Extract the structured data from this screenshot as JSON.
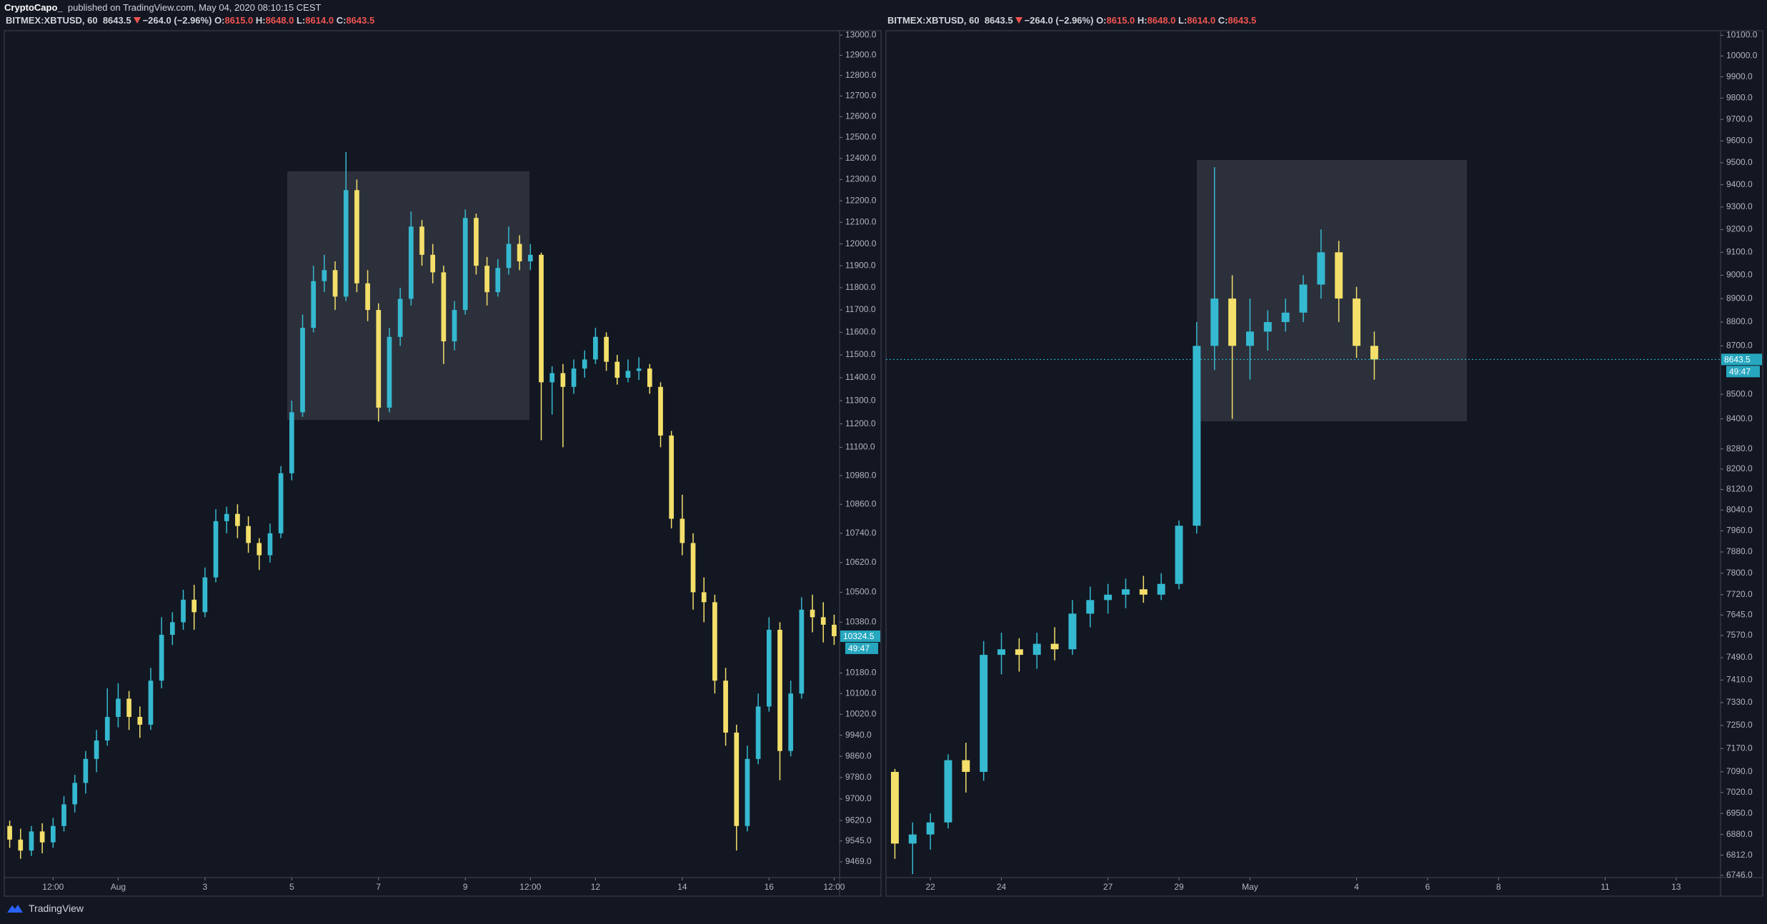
{
  "header": {
    "author": "CryptoCapo_",
    "published": "published on TradingView.com, May 04, 2020 08:10:15 CEST"
  },
  "footer": {
    "brand": "TradingView"
  },
  "chart_data": [
    {
      "type": "candlestick",
      "log_scale": true,
      "up_color": "#35b9d0",
      "down_color": "#f3df6a",
      "price_line": false,
      "legend": {
        "symbol": "BITMEX:XBTUSD, 60",
        "last": "8643.5",
        "change": "−264.0 (−2.96%)",
        "o_label": "O:",
        "o": "8615.0",
        "h_label": "H:",
        "h": "8648.0",
        "l_label": "L:",
        "l": "8614.0",
        "c_label": "C:",
        "c": "8643.5"
      },
      "countdown": "49:47",
      "ylim": [
        9412,
        13022
      ],
      "yticks": [
        {
          "value": 13000,
          "label": "13000.0"
        },
        {
          "value": 12900,
          "label": "12900.0"
        },
        {
          "value": 12800,
          "label": "12800.0"
        },
        {
          "value": 12700,
          "label": "12700.0"
        },
        {
          "value": 12600,
          "label": "12600.0"
        },
        {
          "value": 12500,
          "label": "12500.0"
        },
        {
          "value": 12400,
          "label": "12400.0"
        },
        {
          "value": 12300,
          "label": "12300.0"
        },
        {
          "value": 12200,
          "label": "12200.0"
        },
        {
          "value": 12100,
          "label": "12100.0"
        },
        {
          "value": 12000,
          "label": "12000.0"
        },
        {
          "value": 11900,
          "label": "11900.0"
        },
        {
          "value": 11800,
          "label": "11800.0"
        },
        {
          "value": 11700,
          "label": "11700.0"
        },
        {
          "value": 11600,
          "label": "11600.0"
        },
        {
          "value": 11500,
          "label": "11500.0"
        },
        {
          "value": 11400,
          "label": "11400.0"
        },
        {
          "value": 11300,
          "label": "11300.0"
        },
        {
          "value": 11200,
          "label": "11200.0"
        },
        {
          "value": 11100,
          "label": "11100.0"
        },
        {
          "value": 10980,
          "label": "10980.0"
        },
        {
          "value": 10860,
          "label": "10860.0"
        },
        {
          "value": 10740,
          "label": "10740.0"
        },
        {
          "value": 10620,
          "label": "10620.0"
        },
        {
          "value": 10500,
          "label": "10500.0"
        },
        {
          "value": 10380,
          "label": "10380.0"
        },
        {
          "value": 10180,
          "label": "10180.0"
        },
        {
          "value": 10100,
          "label": "10100.0"
        },
        {
          "value": 10020,
          "label": "10020.0"
        },
        {
          "value": 9940,
          "label": "9940.0"
        },
        {
          "value": 9860,
          "label": "9860.0"
        },
        {
          "value": 9780,
          "label": "9780.0"
        },
        {
          "value": 9700,
          "label": "9700.0"
        },
        {
          "value": 9620,
          "label": "9620.0"
        },
        {
          "value": 9545,
          "label": "9545.0"
        },
        {
          "value": 9469,
          "label": "9469.0"
        }
      ],
      "categories": [
        null,
        null,
        null,
        null,
        "12:00",
        null,
        null,
        null,
        null,
        null,
        "Aug",
        null,
        null,
        null,
        null,
        null,
        null,
        null,
        "3",
        null,
        null,
        null,
        null,
        null,
        null,
        null,
        "5",
        null,
        null,
        null,
        null,
        null,
        null,
        null,
        "7",
        null,
        null,
        null,
        null,
        null,
        null,
        null,
        "9",
        null,
        null,
        null,
        null,
        null,
        "12:00",
        null,
        null,
        null,
        null,
        null,
        "12",
        null,
        null,
        null,
        null,
        null,
        null,
        null,
        "14",
        null,
        null,
        null,
        null,
        null,
        null,
        null,
        "16",
        null,
        null,
        null,
        null,
        null,
        "12:00"
      ],
      "ohlc": [
        [
          9600,
          9620,
          9520,
          9550
        ],
        [
          9550,
          9590,
          9480,
          9510
        ],
        [
          9510,
          9600,
          9490,
          9580
        ],
        [
          9580,
          9610,
          9500,
          9540
        ],
        [
          9540,
          9630,
          9520,
          9600
        ],
        [
          9600,
          9710,
          9580,
          9680
        ],
        [
          9680,
          9790,
          9650,
          9760
        ],
        [
          9760,
          9880,
          9720,
          9850
        ],
        [
          9850,
          9960,
          9800,
          9920
        ],
        [
          9920,
          10120,
          9900,
          10010
        ],
        [
          10010,
          10140,
          9970,
          10080
        ],
        [
          10080,
          10110,
          9960,
          10010
        ],
        [
          10010,
          10050,
          9930,
          9980
        ],
        [
          9980,
          10200,
          9960,
          10150
        ],
        [
          10150,
          10400,
          10120,
          10330
        ],
        [
          10330,
          10420,
          10290,
          10380
        ],
        [
          10380,
          10510,
          10350,
          10470
        ],
        [
          10470,
          10530,
          10350,
          10420
        ],
        [
          10420,
          10600,
          10400,
          10560
        ],
        [
          10560,
          10840,
          10540,
          10790
        ],
        [
          10790,
          10850,
          10740,
          10820
        ],
        [
          10820,
          10860,
          10720,
          10770
        ],
        [
          10770,
          10810,
          10660,
          10700
        ],
        [
          10700,
          10720,
          10590,
          10650
        ],
        [
          10650,
          10780,
          10620,
          10740
        ],
        [
          10740,
          11020,
          10720,
          10990
        ],
        [
          10990,
          11300,
          10960,
          11250
        ],
        [
          11250,
          11680,
          11230,
          11620
        ],
        [
          11620,
          11900,
          11600,
          11830
        ],
        [
          11830,
          11950,
          11780,
          11880
        ],
        [
          11880,
          11920,
          11700,
          11760
        ],
        [
          11760,
          12430,
          11740,
          12250
        ],
        [
          12250,
          12300,
          11780,
          11820
        ],
        [
          11820,
          11880,
          11650,
          11700
        ],
        [
          11700,
          11730,
          11210,
          11270
        ],
        [
          11270,
          11620,
          11250,
          11580
        ],
        [
          11580,
          11800,
          11540,
          11750
        ],
        [
          11750,
          12150,
          11720,
          12080
        ],
        [
          12080,
          12110,
          11900,
          11950
        ],
        [
          11950,
          12000,
          11820,
          11870
        ],
        [
          11870,
          11900,
          11460,
          11560
        ],
        [
          11560,
          11740,
          11520,
          11700
        ],
        [
          11700,
          12160,
          11680,
          12120
        ],
        [
          12120,
          12140,
          11860,
          11900
        ],
        [
          11900,
          11940,
          11720,
          11780
        ],
        [
          11780,
          11930,
          11760,
          11890
        ],
        [
          11890,
          12080,
          11860,
          12000
        ],
        [
          12000,
          12040,
          11880,
          11920
        ],
        [
          11920,
          12000,
          11880,
          11950
        ],
        [
          11950,
          11960,
          11130,
          11380
        ],
        [
          11380,
          11450,
          11240,
          11420
        ],
        [
          11420,
          11460,
          11100,
          11360
        ],
        [
          11360,
          11480,
          11330,
          11440
        ],
        [
          11440,
          11520,
          11400,
          11480
        ],
        [
          11480,
          11620,
          11460,
          11580
        ],
        [
          11580,
          11600,
          11430,
          11470
        ],
        [
          11470,
          11500,
          11370,
          11400
        ],
        [
          11400,
          11480,
          11380,
          11430
        ],
        [
          11430,
          11490,
          11390,
          11440
        ],
        [
          11440,
          11460,
          11330,
          11360
        ],
        [
          11360,
          11380,
          11100,
          11150
        ],
        [
          11150,
          11170,
          10760,
          10800
        ],
        [
          10800,
          10900,
          10650,
          10700
        ],
        [
          10700,
          10740,
          10430,
          10500
        ],
        [
          10500,
          10560,
          10380,
          10460
        ],
        [
          10460,
          10490,
          10100,
          10150
        ],
        [
          10150,
          10200,
          9900,
          9950
        ],
        [
          9950,
          9980,
          9510,
          9600
        ],
        [
          9600,
          9900,
          9580,
          9850
        ],
        [
          9850,
          10100,
          9830,
          10050
        ],
        [
          10050,
          10400,
          10030,
          10350
        ],
        [
          10350,
          10380,
          9770,
          9880
        ],
        [
          9880,
          10150,
          9860,
          10100
        ],
        [
          10100,
          10480,
          10080,
          10430
        ],
        [
          10430,
          10490,
          10340,
          10400
        ],
        [
          10400,
          10460,
          10300,
          10370
        ],
        [
          10370,
          10410,
          10290,
          10324.5
        ]
      ]
    },
    {
      "type": "candlestick",
      "log_scale": true,
      "up_color": "#35b9d0",
      "down_color": "#f3df6a",
      "price_line": true,
      "legend": {
        "symbol": "BITMEX:XBTUSD, 60",
        "last": "8643.5",
        "change": "−264.0 (−2.96%)",
        "o_label": "O:",
        "o": "8615.0",
        "h_label": "H:",
        "h": "8648.0",
        "l_label": "L:",
        "l": "8614.0",
        "c_label": "C:",
        "c": "8643.5"
      },
      "countdown": "49:47",
      "ylim": [
        6739,
        10122
      ],
      "yticks": [
        {
          "value": 10100,
          "label": "10100.0"
        },
        {
          "value": 10000,
          "label": "10000.0"
        },
        {
          "value": 9900,
          "label": "9900.0"
        },
        {
          "value": 9800,
          "label": "9800.0"
        },
        {
          "value": 9700,
          "label": "9700.0"
        },
        {
          "value": 9600,
          "label": "9600.0"
        },
        {
          "value": 9500,
          "label": "9500.0"
        },
        {
          "value": 9400,
          "label": "9400.0"
        },
        {
          "value": 9300,
          "label": "9300.0"
        },
        {
          "value": 9200,
          "label": "9200.0"
        },
        {
          "value": 9100,
          "label": "9100.0"
        },
        {
          "value": 9000,
          "label": "9000.0"
        },
        {
          "value": 8900,
          "label": "8900.0"
        },
        {
          "value": 8800,
          "label": "8800.0"
        },
        {
          "value": 8700,
          "label": "8700.0"
        },
        {
          "value": 8500,
          "label": "8500.0"
        },
        {
          "value": 8400,
          "label": "8400.0"
        },
        {
          "value": 8280,
          "label": "8280.0"
        },
        {
          "value": 8200,
          "label": "8200.0"
        },
        {
          "value": 8120,
          "label": "8120.0"
        },
        {
          "value": 8040,
          "label": "8040.0"
        },
        {
          "value": 7960,
          "label": "7960.0"
        },
        {
          "value": 7880,
          "label": "7880.0"
        },
        {
          "value": 7800,
          "label": "7800.0"
        },
        {
          "value": 7720,
          "label": "7720.0"
        },
        {
          "value": 7645,
          "label": "7645.0"
        },
        {
          "value": 7570,
          "label": "7570.0"
        },
        {
          "value": 7490,
          "label": "7490.0"
        },
        {
          "value": 7410,
          "label": "7410.0"
        },
        {
          "value": 7330,
          "label": "7330.0"
        },
        {
          "value": 7250,
          "label": "7250.0"
        },
        {
          "value": 7170,
          "label": "7170.0"
        },
        {
          "value": 7090,
          "label": "7090.0"
        },
        {
          "value": 7020,
          "label": "7020.0"
        },
        {
          "value": 6950,
          "label": "6950.0"
        },
        {
          "value": 6880,
          "label": "6880.0"
        },
        {
          "value": 6812,
          "label": "6812.0"
        },
        {
          "value": 6746,
          "label": "6746.0"
        }
      ],
      "categories": [
        null,
        null,
        "22",
        null,
        null,
        null,
        "24",
        null,
        null,
        null,
        null,
        null,
        "27",
        null,
        null,
        null,
        "29",
        null,
        null,
        null,
        "May",
        null,
        null,
        null,
        null,
        null,
        "4",
        null,
        null,
        null,
        "6",
        null,
        null,
        null,
        "8",
        null,
        null,
        null,
        null,
        null,
        "11",
        null,
        null,
        null,
        "13",
        null,
        null
      ],
      "ohlc": [
        [
          7090,
          7100,
          6800,
          6850
        ],
        [
          6850,
          6920,
          6750,
          6880
        ],
        [
          6880,
          6950,
          6830,
          6920
        ],
        [
          6920,
          7150,
          6900,
          7130
        ],
        [
          7130,
          7190,
          7020,
          7090
        ],
        [
          7090,
          7550,
          7060,
          7500
        ],
        [
          7500,
          7580,
          7430,
          7520
        ],
        [
          7520,
          7560,
          7440,
          7500
        ],
        [
          7500,
          7580,
          7450,
          7540
        ],
        [
          7540,
          7600,
          7480,
          7520
        ],
        [
          7520,
          7700,
          7500,
          7650
        ],
        [
          7650,
          7750,
          7600,
          7700
        ],
        [
          7700,
          7760,
          7650,
          7720
        ],
        [
          7720,
          7780,
          7670,
          7740
        ],
        [
          7740,
          7790,
          7690,
          7720
        ],
        [
          7720,
          7800,
          7700,
          7760
        ],
        [
          7760,
          8000,
          7740,
          7980
        ],
        [
          7980,
          8800,
          7950,
          8700
        ],
        [
          8700,
          9480,
          8600,
          8900
        ],
        [
          8900,
          9000,
          8400,
          8700
        ],
        [
          8700,
          8900,
          8560,
          8760
        ],
        [
          8760,
          8850,
          8680,
          8800
        ],
        [
          8800,
          8900,
          8760,
          8840
        ],
        [
          8840,
          9000,
          8800,
          8960
        ],
        [
          8960,
          9200,
          8900,
          9100
        ],
        [
          9100,
          9150,
          8800,
          8900
        ],
        [
          8900,
          8950,
          8650,
          8700
        ],
        [
          8700,
          8760,
          8560,
          8643.5
        ],
        null,
        null,
        null,
        null,
        null,
        null,
        null,
        null,
        null,
        null,
        null,
        null,
        null,
        null,
        null,
        null,
        null,
        null,
        null
      ]
    }
  ]
}
